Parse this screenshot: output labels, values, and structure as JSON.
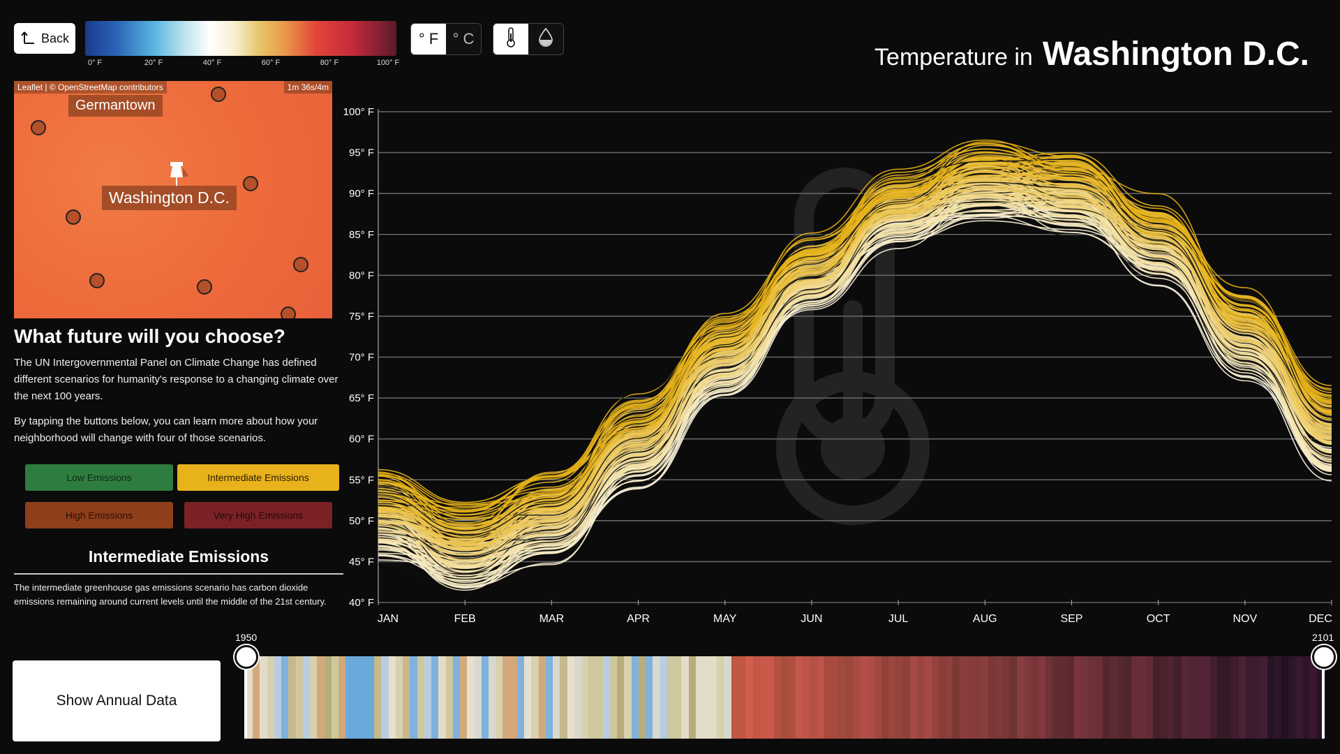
{
  "back_label": "Back",
  "legend_ticks": [
    {
      "label": "0° F",
      "value": 0
    },
    {
      "label": "20° F",
      "value": 20
    },
    {
      "label": "40° F",
      "value": 40
    },
    {
      "label": "60° F",
      "value": 60
    },
    {
      "label": "80° F",
      "value": 80
    },
    {
      "label": "100° F",
      "value": 100
    }
  ],
  "unit_toggle": {
    "f": "° F",
    "c": "° C",
    "selected": "f"
  },
  "mode_toggle": {
    "selected": "temperature",
    "icons": [
      "thermometer-icon",
      "water-drop-icon"
    ]
  },
  "title": {
    "prefix": "Temperature in",
    "city": "Washington D.C."
  },
  "map": {
    "attribution": "Leaflet | © OpenStreetMap contributors",
    "scale_badge": "1m 36s/4m",
    "labels": {
      "germantown": "Germantown",
      "washington": "Washington D.C."
    }
  },
  "left_panel": {
    "heading": "What future will you choose?",
    "para1": "The UN Intergovernmental Panel on Climate Change has defined different scenarios for humanity's response to a changing climate over the next 100 years.",
    "para2": "By tapping the buttons below, you can learn more about how your neighborhood will change with four of those scenarios."
  },
  "scenarios": [
    {
      "label": "Low Emissions",
      "color": "#2e7d3e",
      "text": "#0f2a14"
    },
    {
      "label": "Intermediate Emissions",
      "color": "#e8b21c",
      "text": "#2a1c00",
      "selected": true
    },
    {
      "label": "High Emissions",
      "color": "#8f3f1c",
      "text": "#2a0f05"
    },
    {
      "label": "Very High Emissions",
      "color": "#7a2226",
      "text": "#250708"
    }
  ],
  "selected_scenario": {
    "title": "Intermediate Emissions",
    "description": "The intermediate greenhouse gas emissions scenario has carbon dioxide emissions remaining around current levels until the middle of the 21st century."
  },
  "show_annual_label": "Show Annual Data",
  "timeline": {
    "start_year": "1950",
    "end_year": "2101"
  },
  "chart_data": {
    "type": "line",
    "title": "",
    "xlabel": "",
    "ylabel": "",
    "categories": [
      "JAN",
      "FEB",
      "MAR",
      "APR",
      "MAY",
      "JUN",
      "JUL",
      "AUG",
      "SEP",
      "OCT",
      "NOV",
      "DEC"
    ],
    "y_tick_labels": [
      "100° F",
      "95° F",
      "90° F",
      "85° F",
      "80° F",
      "75° F",
      "70° F",
      "65° F",
      "60° F",
      "55° F",
      "50° F",
      "45° F",
      "40° F"
    ],
    "ylim": [
      40,
      100
    ],
    "grid": true,
    "series_low_envelope": [
      45,
      41,
      44,
      54,
      65,
      76,
      84,
      87,
      85,
      79,
      67,
      55
    ],
    "series_high_envelope": [
      56,
      52,
      56,
      65,
      75,
      84,
      92,
      96,
      95,
      89,
      78,
      66
    ],
    "series_count": "many (one per year, 1950–2101)"
  }
}
